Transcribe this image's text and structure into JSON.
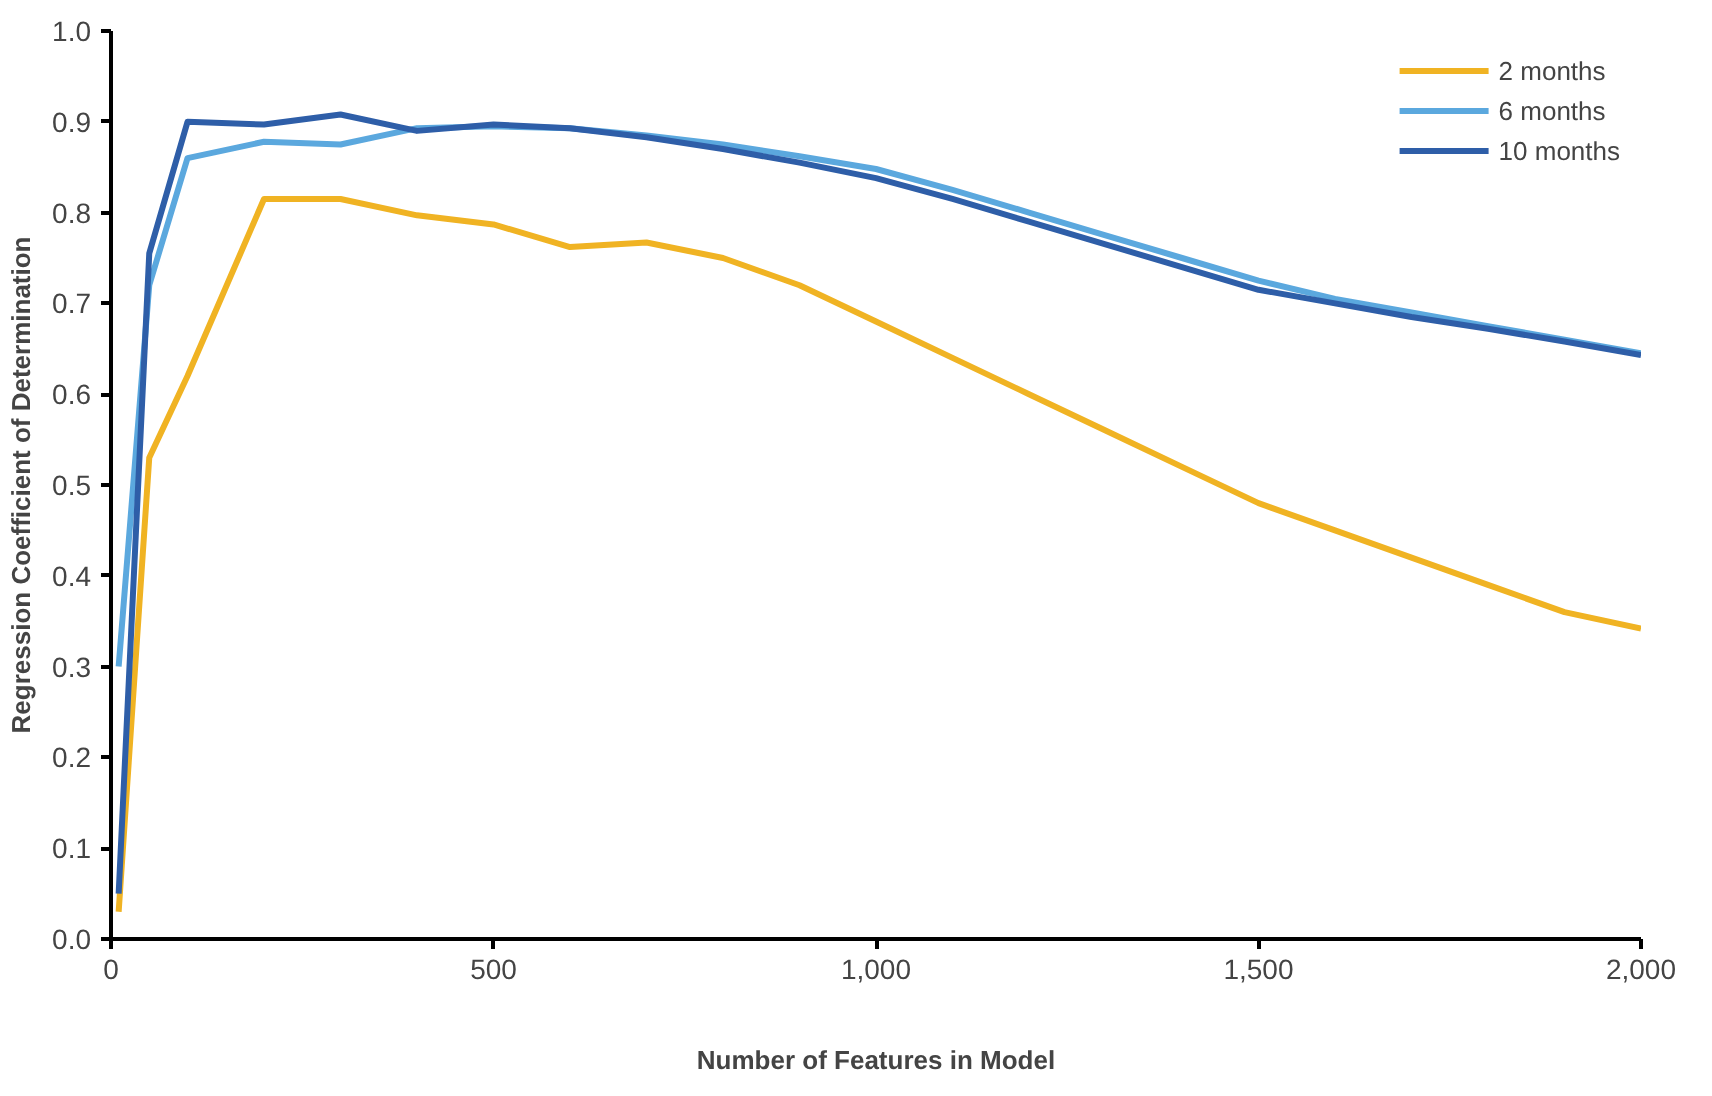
{
  "chart_data": {
    "type": "line",
    "xlabel": "Number of Features in Model",
    "ylabel": "Regression Coefficient of Determination",
    "x": [
      10,
      50,
      100,
      200,
      300,
      400,
      500,
      600,
      700,
      800,
      900,
      1000,
      1100,
      1200,
      1300,
      1400,
      1500,
      1600,
      1700,
      1800,
      1900,
      2000
    ],
    "series": [
      {
        "name": "2 months",
        "color": "#f0b323",
        "values": [
          0.03,
          0.53,
          0.62,
          0.815,
          0.815,
          0.797,
          0.787,
          0.762,
          0.767,
          0.75,
          0.72,
          0.68,
          0.64,
          0.6,
          0.56,
          0.52,
          0.48,
          0.45,
          0.42,
          0.39,
          0.36,
          0.342
        ]
      },
      {
        "name": "6 months",
        "color": "#5ba8de",
        "values": [
          0.3,
          0.72,
          0.86,
          0.878,
          0.875,
          0.893,
          0.895,
          0.893,
          0.885,
          0.875,
          0.862,
          0.848,
          0.825,
          0.8,
          0.775,
          0.75,
          0.725,
          0.705,
          0.69,
          0.675,
          0.66,
          0.645
        ]
      },
      {
        "name": "10 months",
        "color": "#2e5ea8",
        "values": [
          0.05,
          0.755,
          0.9,
          0.897,
          0.908,
          0.89,
          0.897,
          0.893,
          0.883,
          0.87,
          0.855,
          0.838,
          0.815,
          0.79,
          0.765,
          0.74,
          0.715,
          0.7,
          0.685,
          0.672,
          0.658,
          0.643
        ]
      }
    ],
    "xlim": [
      0,
      2000
    ],
    "ylim": [
      0,
      1.0
    ],
    "xticks": [
      0,
      500,
      {
        "value": 1000,
        "label": "1,000"
      },
      {
        "value": 1500,
        "label": "1,500"
      },
      {
        "value": 2000,
        "label": "2,000"
      }
    ],
    "yticks": [
      {
        "value": 0,
        "label": "0.0"
      },
      0.1,
      0.2,
      0.3,
      0.4,
      0.5,
      0.6,
      0.7,
      0.8,
      0.9,
      {
        "value": 1,
        "label": "1.0"
      }
    ],
    "grid": false,
    "legend": "top right",
    "marker": "none",
    "line_style": "solid"
  }
}
